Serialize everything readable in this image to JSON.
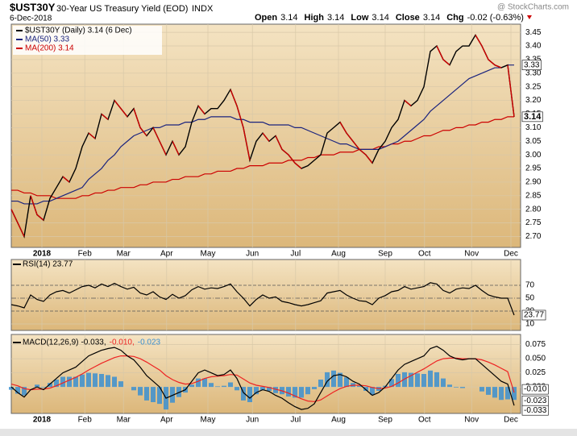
{
  "header": {
    "symbol": "$UST30Y",
    "name": "30-Year US Treasury Yield (EOD)",
    "exchange": "INDX",
    "date": "6-Dec-2018",
    "source": "@ StockCharts.com",
    "quote": [
      {
        "label": "Open",
        "value": "3.14"
      },
      {
        "label": "High",
        "value": "3.14"
      },
      {
        "label": "Low",
        "value": "3.14"
      },
      {
        "label": "Close",
        "value": "3.14"
      },
      {
        "label": "Chg",
        "value": "-0.02 (-0.63%)"
      }
    ]
  },
  "chart_data": [
    {
      "type": "line",
      "xlim": [
        0,
        79
      ],
      "xticks": [
        {
          "value": 4.75,
          "label": "2018"
        },
        {
          "value": 11.4,
          "label": "Feb"
        },
        {
          "value": 17.4,
          "label": "Mar"
        },
        {
          "value": 24.1,
          "label": "Apr"
        },
        {
          "value": 30.5,
          "label": "May"
        },
        {
          "value": 37.4,
          "label": "Jun"
        },
        {
          "value": 44.1,
          "label": "Jul"
        },
        {
          "value": 50.75,
          "label": "Aug"
        },
        {
          "value": 58,
          "label": "Sep"
        },
        {
          "value": 64.1,
          "label": "Oct"
        },
        {
          "value": 71.4,
          "label": "Nov"
        },
        {
          "value": 77.5,
          "label": "Dec"
        }
      ],
      "ylim": [
        2.66,
        3.48
      ],
      "yticks": [
        {
          "value": 2.7,
          "label": "2.70"
        },
        {
          "value": 2.75,
          "label": "2.75"
        },
        {
          "value": 2.8,
          "label": "2.80"
        },
        {
          "value": 2.85,
          "label": "2.85"
        },
        {
          "value": 2.9,
          "label": "2.90"
        },
        {
          "value": 2.95,
          "label": "2.95"
        },
        {
          "value": 3.0,
          "label": "3.00"
        },
        {
          "value": 3.05,
          "label": "3.05"
        },
        {
          "value": 3.1,
          "label": "3.10"
        },
        {
          "value": 3.15,
          "label": "3.15"
        },
        {
          "value": 3.2,
          "label": "3.20"
        },
        {
          "value": 3.25,
          "label": "3.25"
        },
        {
          "value": 3.3,
          "label": "3.30"
        },
        {
          "value": 3.35,
          "label": "3.35"
        },
        {
          "value": 3.4,
          "label": "3.40"
        },
        {
          "value": 3.45,
          "label": "3.45"
        }
      ],
      "grid": true,
      "down_color": "#cc0000",
      "series": [
        {
          "name": "$UST30Y (Daily) 3.14 (6 Dec)",
          "color": "#000000",
          "badge": "3.14",
          "values": [
            2.8,
            2.75,
            2.7,
            2.85,
            2.78,
            2.76,
            2.84,
            2.88,
            2.92,
            2.9,
            2.95,
            3.03,
            3.08,
            3.06,
            3.15,
            3.13,
            3.2,
            3.17,
            3.14,
            3.17,
            3.1,
            3.07,
            3.1,
            3.05,
            3.0,
            3.05,
            3.0,
            3.03,
            3.12,
            3.18,
            3.15,
            3.17,
            3.17,
            3.2,
            3.24,
            3.18,
            3.1,
            2.98,
            3.05,
            3.08,
            3.05,
            3.07,
            3.02,
            3.0,
            2.97,
            2.95,
            2.96,
            2.98,
            3.0,
            3.08,
            3.1,
            3.12,
            3.08,
            3.05,
            3.02,
            3.0,
            2.97,
            3.02,
            3.05,
            3.1,
            3.13,
            3.2,
            3.18,
            3.2,
            3.25,
            3.38,
            3.4,
            3.35,
            3.33,
            3.38,
            3.4,
            3.4,
            3.44,
            3.4,
            3.35,
            3.33,
            3.32,
            3.33,
            3.14
          ]
        },
        {
          "name": "MA(50) 3.33",
          "color": "#1a237e",
          "badge": "3.33",
          "values": [
            2.83,
            2.83,
            2.82,
            2.82,
            2.82,
            2.83,
            2.83,
            2.84,
            2.85,
            2.86,
            2.87,
            2.88,
            2.91,
            2.93,
            2.95,
            2.98,
            3.0,
            3.03,
            3.05,
            3.07,
            3.08,
            3.09,
            3.1,
            3.1,
            3.11,
            3.11,
            3.11,
            3.12,
            3.12,
            3.13,
            3.13,
            3.14,
            3.14,
            3.14,
            3.14,
            3.13,
            3.13,
            3.12,
            3.12,
            3.12,
            3.11,
            3.11,
            3.11,
            3.11,
            3.1,
            3.1,
            3.09,
            3.08,
            3.07,
            3.06,
            3.05,
            3.04,
            3.04,
            3.03,
            3.02,
            3.02,
            3.02,
            3.02,
            3.03,
            3.04,
            3.05,
            3.07,
            3.09,
            3.11,
            3.13,
            3.16,
            3.18,
            3.2,
            3.22,
            3.24,
            3.26,
            3.28,
            3.29,
            3.3,
            3.31,
            3.32,
            3.32,
            3.33,
            3.33
          ]
        },
        {
          "name": "MA(200) 3.14",
          "color": "#cc0000",
          "values": [
            2.87,
            2.87,
            2.86,
            2.86,
            2.85,
            2.85,
            2.85,
            2.84,
            2.84,
            2.84,
            2.84,
            2.85,
            2.85,
            2.86,
            2.86,
            2.87,
            2.87,
            2.88,
            2.88,
            2.88,
            2.89,
            2.89,
            2.9,
            2.9,
            2.9,
            2.91,
            2.91,
            2.92,
            2.92,
            2.92,
            2.93,
            2.93,
            2.94,
            2.94,
            2.94,
            2.95,
            2.95,
            2.96,
            2.96,
            2.96,
            2.97,
            2.97,
            2.97,
            2.98,
            2.98,
            2.98,
            2.99,
            2.99,
            3.0,
            3.0,
            3.0,
            3.01,
            3.01,
            3.01,
            3.02,
            3.02,
            3.02,
            3.03,
            3.03,
            3.04,
            3.04,
            3.05,
            3.05,
            3.06,
            3.07,
            3.07,
            3.08,
            3.09,
            3.09,
            3.1,
            3.1,
            3.11,
            3.11,
            3.12,
            3.12,
            3.13,
            3.13,
            3.14,
            3.14
          ]
        }
      ]
    },
    {
      "type": "rsi",
      "label": "RSI(14) 23.77",
      "xlim": [
        0,
        79
      ],
      "ylim": [
        0,
        110
      ],
      "yticks": [
        10,
        30,
        50,
        70
      ],
      "bands": [
        30,
        70
      ],
      "midline": 50,
      "series": [
        {
          "name": "RSI(14)",
          "color": "#000000",
          "badge": "23.77",
          "values": [
            40,
            38,
            35,
            55,
            48,
            45,
            55,
            60,
            62,
            58,
            63,
            68,
            70,
            66,
            72,
            68,
            73,
            68,
            64,
            67,
            58,
            55,
            60,
            52,
            48,
            56,
            50,
            54,
            63,
            68,
            64,
            66,
            65,
            68,
            72,
            60,
            50,
            38,
            48,
            55,
            50,
            52,
            45,
            43,
            40,
            38,
            40,
            43,
            46,
            58,
            60,
            62,
            55,
            50,
            46,
            45,
            40,
            50,
            54,
            60,
            62,
            68,
            64,
            66,
            68,
            74,
            72,
            62,
            58,
            64,
            66,
            65,
            70,
            62,
            55,
            52,
            50,
            50,
            23.77
          ]
        }
      ]
    },
    {
      "type": "macd",
      "label": "MACD(12,26,9)",
      "xlim": [
        0,
        79
      ],
      "xticks": [
        {
          "value": 4.75,
          "label": "2018"
        },
        {
          "value": 11.4,
          "label": "Feb"
        },
        {
          "value": 17.4,
          "label": "Mar"
        },
        {
          "value": 24.1,
          "label": "Apr"
        },
        {
          "value": 30.5,
          "label": "May"
        },
        {
          "value": 37.4,
          "label": "Jun"
        },
        {
          "value": 44.1,
          "label": "Jul"
        },
        {
          "value": 50.75,
          "label": "Aug"
        },
        {
          "value": 58,
          "label": "Sep"
        },
        {
          "value": 64.1,
          "label": "Oct"
        },
        {
          "value": 71.4,
          "label": "Nov"
        },
        {
          "value": 77.5,
          "label": "Dec"
        }
      ],
      "ylim": [
        -0.047,
        0.093
      ],
      "yticks": [
        {
          "value": 0,
          "label": "0.000"
        },
        {
          "value": 0.025,
          "label": "0.025"
        },
        {
          "value": 0.05,
          "label": "0.050"
        },
        {
          "value": 0.075,
          "label": "0.075"
        }
      ],
      "series": [
        {
          "name": "-0.033,",
          "color": "#000000",
          "badge": "-0.033",
          "values": [
            0.0,
            -0.01,
            -0.018,
            -0.005,
            0.0,
            -0.005,
            0.005,
            0.015,
            0.025,
            0.03,
            0.035,
            0.045,
            0.055,
            0.06,
            0.065,
            0.068,
            0.07,
            0.065,
            0.055,
            0.048,
            0.035,
            0.02,
            0.01,
            0.0,
            -0.02,
            -0.015,
            -0.01,
            -0.005,
            0.01,
            0.025,
            0.03,
            0.025,
            0.02,
            0.022,
            0.03,
            0.015,
            -0.01,
            -0.02,
            -0.01,
            -0.005,
            -0.008,
            -0.015,
            -0.02,
            -0.028,
            -0.035,
            -0.04,
            -0.038,
            -0.03,
            -0.01,
            0.01,
            0.02,
            0.022,
            0.018,
            0.01,
            0.005,
            -0.005,
            -0.015,
            -0.01,
            0.0,
            0.015,
            0.03,
            0.04,
            0.045,
            0.05,
            0.055,
            0.068,
            0.072,
            0.065,
            0.055,
            0.05,
            0.048,
            0.05,
            0.05,
            0.04,
            0.03,
            0.02,
            0.01,
            0.005,
            -0.033
          ]
        },
        {
          "name": "-0.010,",
          "color": "#ee2222",
          "badge": "-0.010",
          "values": [
            0.005,
            0.002,
            -0.003,
            -0.005,
            -0.004,
            -0.004,
            -0.002,
            0.002,
            0.007,
            0.012,
            0.017,
            0.023,
            0.03,
            0.036,
            0.042,
            0.047,
            0.052,
            0.055,
            0.055,
            0.054,
            0.05,
            0.044,
            0.037,
            0.03,
            0.02,
            0.013,
            0.008,
            0.005,
            0.006,
            0.01,
            0.015,
            0.018,
            0.019,
            0.02,
            0.022,
            0.021,
            0.014,
            0.007,
            0.003,
            0.001,
            -0.001,
            -0.004,
            -0.007,
            -0.011,
            -0.016,
            -0.021,
            -0.025,
            -0.026,
            -0.023,
            -0.016,
            -0.009,
            -0.003,
            0.001,
            0.003,
            0.003,
            0.002,
            -0.001,
            -0.003,
            -0.002,
            0.001,
            0.007,
            0.014,
            0.02,
            0.026,
            0.032,
            0.039,
            0.046,
            0.05,
            0.051,
            0.051,
            0.05,
            0.05,
            0.05,
            0.048,
            0.044,
            0.039,
            0.033,
            0.027,
            -0.01
          ]
        },
        {
          "name": "-0.023",
          "color": "#3b8fd0",
          "badge": "-0.023",
          "histogram": true,
          "values": [
            -0.005,
            -0.012,
            -0.015,
            0.0,
            0.004,
            -0.001,
            0.007,
            0.013,
            0.018,
            0.018,
            0.018,
            0.022,
            0.025,
            0.024,
            0.023,
            0.021,
            0.018,
            0.01,
            0.0,
            -0.006,
            -0.015,
            -0.024,
            -0.027,
            -0.03,
            -0.04,
            -0.028,
            -0.018,
            -0.01,
            0.004,
            0.015,
            0.015,
            0.007,
            0.001,
            0.002,
            0.008,
            -0.006,
            -0.024,
            -0.027,
            -0.013,
            -0.006,
            -0.007,
            -0.011,
            -0.013,
            -0.017,
            -0.019,
            -0.019,
            -0.013,
            -0.004,
            0.013,
            0.026,
            0.029,
            0.025,
            0.017,
            0.007,
            0.002,
            -0.007,
            -0.014,
            -0.007,
            0.002,
            0.014,
            0.023,
            0.026,
            0.025,
            0.024,
            0.023,
            0.029,
            0.026,
            0.015,
            0.004,
            -0.001,
            -0.002,
            0.0,
            0.0,
            -0.008,
            -0.014,
            -0.019,
            -0.023,
            -0.022,
            -0.023
          ]
        }
      ]
    }
  ]
}
